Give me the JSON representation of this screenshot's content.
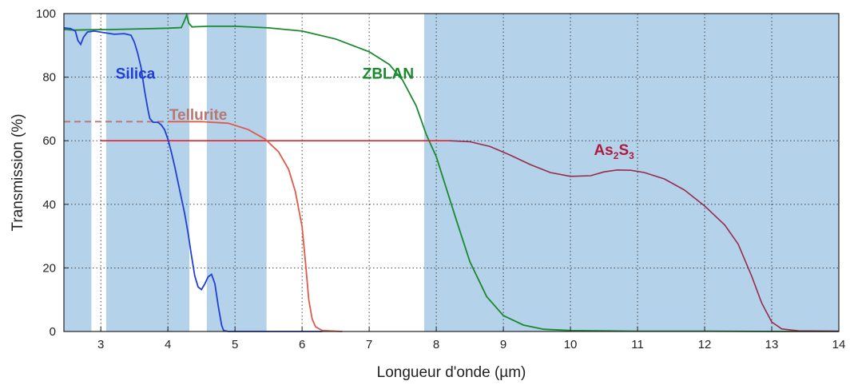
{
  "chart_data": {
    "type": "line",
    "xlabel": "Longueur d'onde (µm)",
    "ylabel": "Transmission (%)",
    "xlim": [
      2.45,
      14
    ],
    "ylim": [
      0,
      100
    ],
    "xticks": [
      3,
      4,
      5,
      6,
      7,
      8,
      9,
      10,
      11,
      12,
      13,
      14
    ],
    "yticks": [
      0,
      20,
      40,
      60,
      80,
      100
    ],
    "grid": "dotted",
    "shaded_bands": [
      [
        2.45,
        2.86
      ],
      [
        3.08,
        4.32
      ],
      [
        4.58,
        5.47
      ],
      [
        7.82,
        14
      ]
    ],
    "shade_color": "#b4d2ea",
    "series": [
      {
        "name": "Silica",
        "color": "#1f3fd6",
        "points": [
          [
            2.45,
            95.5
          ],
          [
            2.55,
            95.3
          ],
          [
            2.62,
            94.5
          ],
          [
            2.66,
            91.5
          ],
          [
            2.7,
            90.3
          ],
          [
            2.74,
            92.5
          ],
          [
            2.8,
            94.2
          ],
          [
            2.9,
            94.5
          ],
          [
            3.05,
            94.0
          ],
          [
            3.2,
            93.5
          ],
          [
            3.35,
            93.7
          ],
          [
            3.45,
            93.2
          ],
          [
            3.5,
            91.0
          ],
          [
            3.55,
            87.5
          ],
          [
            3.6,
            83.0
          ],
          [
            3.65,
            76.0
          ],
          [
            3.7,
            70.0
          ],
          [
            3.73,
            67.0
          ],
          [
            3.78,
            65.8
          ],
          [
            3.85,
            65.8
          ],
          [
            3.9,
            65.0
          ],
          [
            3.95,
            63.5
          ],
          [
            4.0,
            60.5
          ],
          [
            4.05,
            56.5
          ],
          [
            4.1,
            52.0
          ],
          [
            4.15,
            47.0
          ],
          [
            4.2,
            42.0
          ],
          [
            4.25,
            37.0
          ],
          [
            4.3,
            31.0
          ],
          [
            4.35,
            24.0
          ],
          [
            4.4,
            17.5
          ],
          [
            4.45,
            14.0
          ],
          [
            4.5,
            13.2
          ],
          [
            4.55,
            15.0
          ],
          [
            4.6,
            17.2
          ],
          [
            4.65,
            18.0
          ],
          [
            4.7,
            15.0
          ],
          [
            4.75,
            8.0
          ],
          [
            4.8,
            2.0
          ],
          [
            4.83,
            0.3
          ],
          [
            4.9,
            0
          ],
          [
            6.3,
            0
          ]
        ]
      },
      {
        "name": "Tellurite",
        "color": "#e05a4a",
        "label_color": "#b87770",
        "dashed_until": 4.0,
        "points": [
          [
            2.45,
            66
          ],
          [
            3.85,
            66
          ],
          [
            4.0,
            66
          ],
          [
            4.5,
            66
          ],
          [
            4.9,
            65.5
          ],
          [
            5.2,
            63.5
          ],
          [
            5.45,
            60.5
          ],
          [
            5.65,
            56.5
          ],
          [
            5.8,
            51.0
          ],
          [
            5.9,
            44.0
          ],
          [
            6.0,
            33.0
          ],
          [
            6.05,
            22.0
          ],
          [
            6.1,
            10.0
          ],
          [
            6.15,
            4.0
          ],
          [
            6.2,
            1.5
          ],
          [
            6.3,
            0.3
          ],
          [
            6.6,
            0
          ]
        ]
      },
      {
        "name": "ZBLAN",
        "color": "#1a8a2e",
        "points": [
          [
            2.45,
            95.0
          ],
          [
            2.6,
            94.8
          ],
          [
            2.8,
            94.9
          ],
          [
            3.2,
            95.0
          ],
          [
            3.6,
            95.2
          ],
          [
            4.0,
            95.4
          ],
          [
            4.2,
            95.6
          ],
          [
            4.25,
            98.0
          ],
          [
            4.28,
            99.6
          ],
          [
            4.31,
            97.0
          ],
          [
            4.36,
            95.8
          ],
          [
            4.6,
            96.0
          ],
          [
            5.0,
            96.0
          ],
          [
            5.5,
            95.5
          ],
          [
            6.0,
            94.5
          ],
          [
            6.5,
            92.0
          ],
          [
            7.0,
            88.0
          ],
          [
            7.3,
            84.0
          ],
          [
            7.5,
            79.0
          ],
          [
            7.7,
            71.0
          ],
          [
            7.85,
            62.0
          ],
          [
            8.0,
            55.0
          ],
          [
            8.15,
            45.0
          ],
          [
            8.3,
            35.0
          ],
          [
            8.5,
            22.0
          ],
          [
            8.75,
            11.0
          ],
          [
            9.0,
            5.0
          ],
          [
            9.3,
            2.0
          ],
          [
            9.6,
            0.7
          ],
          [
            10.0,
            0.3
          ],
          [
            11.0,
            0.1
          ],
          [
            12.0,
            0.1
          ],
          [
            13.0,
            0
          ],
          [
            14.0,
            0
          ]
        ]
      },
      {
        "name": "As₂S₃",
        "label_main": "As",
        "label_sub1": "2",
        "label_mid": "S",
        "label_sub2": "3",
        "color": "#e8202a",
        "tail_color": "#9a2a4a",
        "dashed_until": 2.95,
        "points": [
          [
            2.45,
            60
          ],
          [
            3.0,
            60
          ],
          [
            4.0,
            60
          ],
          [
            5.0,
            60
          ],
          [
            6.0,
            60
          ],
          [
            7.0,
            60
          ],
          [
            7.5,
            60
          ],
          [
            8.0,
            60
          ],
          [
            8.2,
            60
          ],
          [
            8.5,
            59.7
          ],
          [
            8.8,
            58.2
          ],
          [
            9.1,
            55.5
          ],
          [
            9.4,
            52.5
          ],
          [
            9.7,
            50.0
          ],
          [
            10.0,
            48.8
          ],
          [
            10.3,
            49.0
          ],
          [
            10.5,
            50.2
          ],
          [
            10.7,
            50.8
          ],
          [
            10.9,
            50.7
          ],
          [
            11.1,
            50.0
          ],
          [
            11.4,
            48.0
          ],
          [
            11.7,
            44.5
          ],
          [
            12.0,
            39.5
          ],
          [
            12.3,
            33.5
          ],
          [
            12.5,
            27.5
          ],
          [
            12.7,
            17.5
          ],
          [
            12.85,
            9.0
          ],
          [
            13.0,
            3.0
          ],
          [
            13.15,
            0.8
          ],
          [
            13.4,
            0.2
          ],
          [
            14.0,
            0.1
          ]
        ]
      }
    ]
  }
}
